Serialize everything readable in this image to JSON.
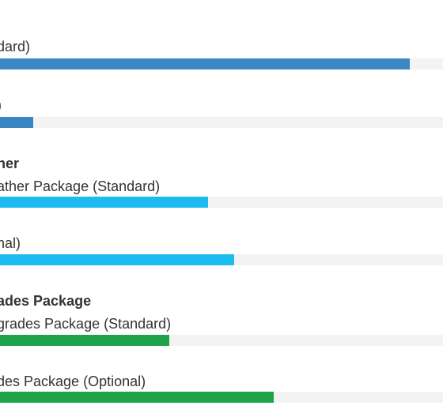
{
  "chart_data": {
    "type": "bar",
    "orientation": "horizontal",
    "groups": [
      {
        "title": "",
        "color": "#3a87c4",
        "items": [
          {
            "label": "dard)",
            "value": 0.925
          },
          {
            "label": ")",
            "value": 0.075
          }
        ]
      },
      {
        "title": "her",
        "color": "#1dbcf0",
        "items": [
          {
            "label": "ather Package (Standard)",
            "value": 0.469
          },
          {
            "label": "nal)",
            "value": 0.529
          }
        ]
      },
      {
        "title": "ades Package",
        "color": "#1fa24a",
        "items": [
          {
            "label": "grades Package (Standard)",
            "value": 0.383
          },
          {
            "label": "des Package (Optional)",
            "value": 0.618
          }
        ]
      }
    ],
    "track_color": "#f3f3f3",
    "grid": false
  }
}
